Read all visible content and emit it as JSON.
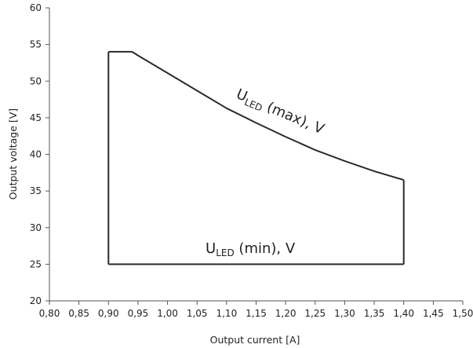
{
  "chart_data": {
    "type": "line",
    "xlabel": "Output current [A]",
    "ylabel": "Output voltage [V]",
    "xlim": [
      0.8,
      1.5
    ],
    "ylim": [
      20,
      60
    ],
    "xticks": [
      "0,80",
      "0,85",
      "0,90",
      "0,95",
      "1,00",
      "1,05",
      "1,10",
      "1,15",
      "1,20",
      "1,25",
      "1,30",
      "1,35",
      "1,40",
      "1,45",
      "1,50"
    ],
    "yticks": [
      "20",
      "25",
      "30",
      "35",
      "40",
      "45",
      "50",
      "55",
      "60"
    ],
    "grid": false,
    "series": [
      {
        "name": "ULED (max), V",
        "x": [
          0.9,
          0.94,
          0.95,
          1.0,
          1.05,
          1.1,
          1.15,
          1.2,
          1.25,
          1.3,
          1.35,
          1.4
        ],
        "y": [
          54.0,
          54.0,
          53.5,
          51.1,
          48.7,
          46.3,
          44.3,
          42.4,
          40.6,
          39.1,
          37.7,
          36.5
        ]
      },
      {
        "name": "ULED (min), V",
        "x": [
          0.9,
          1.4
        ],
        "y": [
          25.0,
          25.0
        ]
      }
    ],
    "boundary": {
      "left_x": 0.9,
      "right_x": 1.4
    },
    "annotations": [
      {
        "main": "U",
        "sub": "LED",
        "rest": " (max), V",
        "rotated": true
      },
      {
        "main": "U",
        "sub": "LED",
        "rest": " (min), V",
        "rotated": false
      }
    ],
    "colors": {
      "line": "#2b2b2b",
      "axis": "#555555",
      "text": "#222222"
    }
  }
}
